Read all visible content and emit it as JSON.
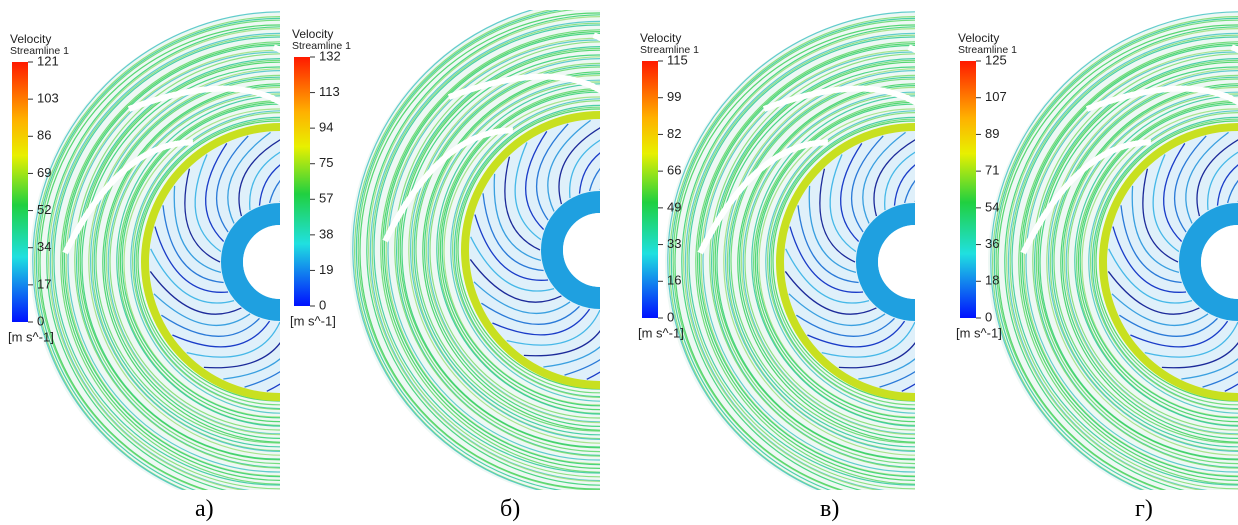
{
  "panels": [
    {
      "title": "Velocity",
      "subtitle": "Streamline 1",
      "ticks": [
        121,
        103,
        86,
        69,
        52,
        34,
        17,
        0
      ],
      "unit": "[m s^-1]",
      "caption": "а)"
    },
    {
      "title": "Velocity",
      "subtitle": "Streamline 1",
      "ticks": [
        132,
        113,
        94,
        75,
        57,
        38,
        19,
        0
      ],
      "unit": "[m s^-1]",
      "caption": "б)"
    },
    {
      "title": "Velocity",
      "subtitle": "Streamline 1",
      "ticks": [
        115,
        99,
        82,
        66,
        49,
        33,
        16,
        0
      ],
      "unit": "[m s^-1]",
      "caption": "в)"
    },
    {
      "title": "Velocity",
      "subtitle": "Streamline 1",
      "ticks": [
        125,
        107,
        89,
        71,
        54,
        36,
        18,
        0
      ],
      "unit": "[m s^-1]",
      "caption": "г)"
    }
  ]
}
